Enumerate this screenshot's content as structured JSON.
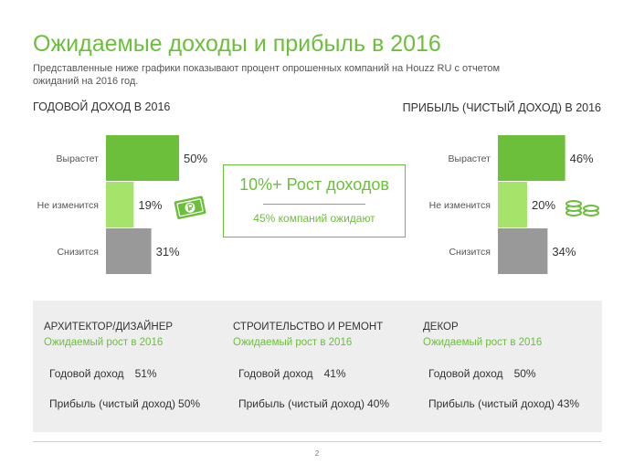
{
  "title": "Ожидаемые доходы и прибыль в 2016",
  "subtitle": "Представленные ниже графики показывают процент опрошенных компаний на Houzz RU с отчетом ожиданий на 2016 год.",
  "colors": {
    "accent": "#6bbf3a",
    "light_green": "#a6e36a",
    "gray": "#999999",
    "panel_bg": "#eeeeee"
  },
  "chart_data": [
    {
      "type": "bar",
      "title": "ГОДОВОЙ ДОХОД В 2016",
      "categories": [
        "Вырастет",
        "Не изменится",
        "Снизится"
      ],
      "values": [
        50,
        19,
        31
      ],
      "value_labels": [
        "50%",
        "19%",
        "31%"
      ],
      "unit": "%",
      "orientation": "horizontal",
      "xlim": [
        0,
        100
      ]
    },
    {
      "type": "bar",
      "title": "ПРИБЫЛЬ  (ЧИСТЫЙ ДОХОД) В 2016",
      "categories": [
        "Вырастет",
        "Не изменится",
        "Снизится"
      ],
      "values": [
        46,
        20,
        34
      ],
      "value_labels": [
        "46%",
        "20%",
        "34%"
      ],
      "unit": "%",
      "orientation": "horizontal",
      "xlim": [
        0,
        100
      ]
    }
  ],
  "callout": {
    "headline": "10%+ Рост доходов",
    "caption": "45% компаний  ожидают"
  },
  "icons": {
    "left": "ruble-banknote-icon",
    "right": "coin-stacks-icon"
  },
  "panels": [
    {
      "heading": "АРХИТЕКТОР/ДИЗАЙНЕР",
      "subheading": "Ожидаемый  рост в 2016",
      "revenue_label": "Годовой доход",
      "revenue_value": "51%",
      "profit_label": "Прибыль (чистый доход)",
      "profit_value": "50%"
    },
    {
      "heading": "СТРОИТЕЛЬСТВО  И РЕМОНТ",
      "subheading": "Ожидаемый  рост в 2016",
      "revenue_label": "Годовой доход",
      "revenue_value": "41%",
      "profit_label": "Прибыль (чистый доход)",
      "profit_value": "40%"
    },
    {
      "heading": "ДЕКОР",
      "subheading": "Ожидаемый  рост в 2016",
      "revenue_label": "Годовой доход",
      "revenue_value": "50%",
      "profit_label": "Прибыль (чистый доход)",
      "profit_value": "43%"
    }
  ],
  "page_number": "2"
}
